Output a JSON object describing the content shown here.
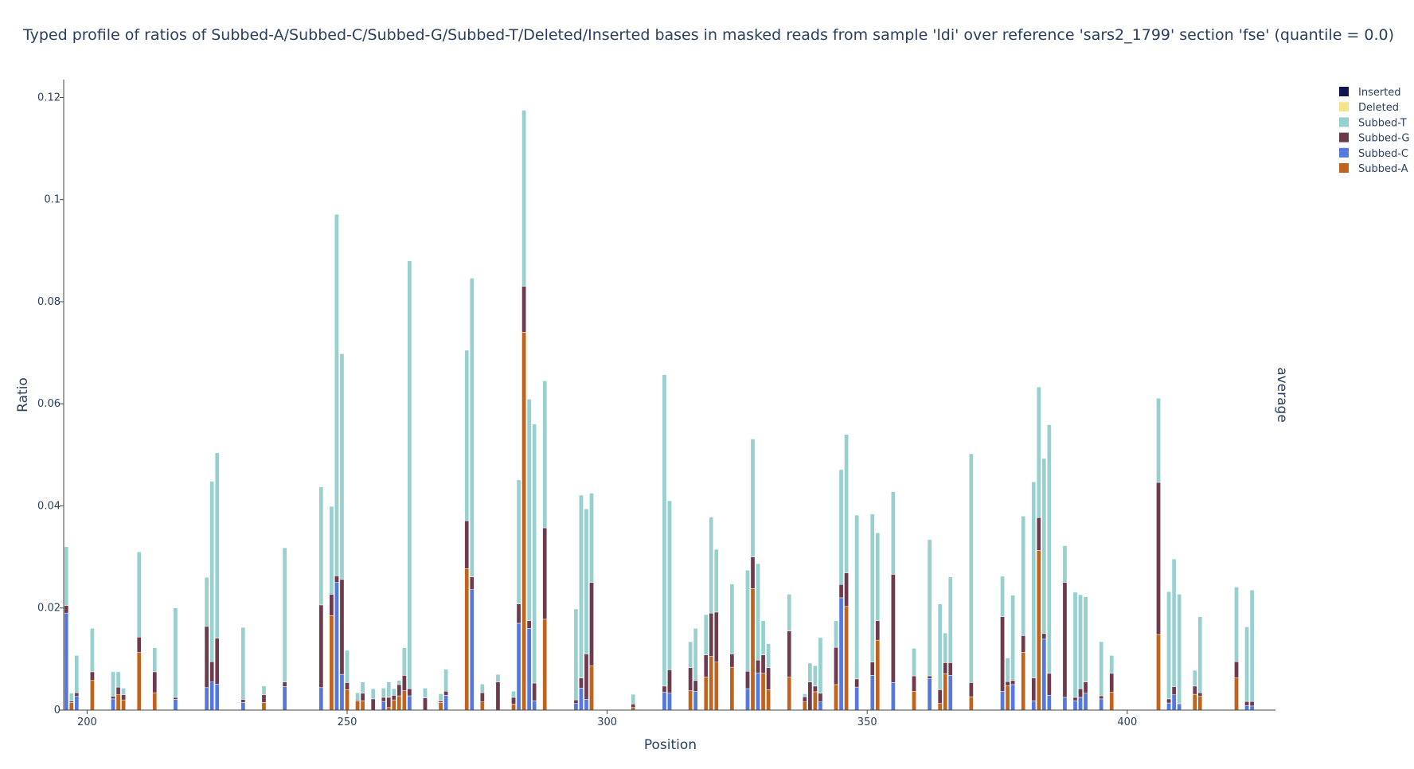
{
  "chart_data": {
    "type": "bar",
    "stacked": true,
    "title": "Typed profile of ratios of Subbed-A/Subbed-C/Subbed-G/Subbed-T/Deleted/Inserted bases in masked reads from sample 'ldi' over reference 'sars2_1799' section 'fse' (quantile = 0.0)",
    "xlabel": "Position",
    "ylabel": "Ratio",
    "facet_label": "average",
    "xlim": [
      195.5,
      428.5
    ],
    "ylim": [
      0,
      0.1235
    ],
    "x_ticks": [
      200,
      250,
      300,
      350,
      400
    ],
    "y_ticks": [
      0,
      0.02,
      0.04,
      0.06,
      0.08,
      0.1,
      0.12
    ],
    "y_tick_labels": [
      "0",
      "0.02",
      "0.04",
      "0.06",
      "0.08",
      "0.1",
      "0.12"
    ],
    "legend_position": "top-right",
    "legend_order": [
      "Inserted",
      "Deleted",
      "Subbed-T",
      "Subbed-G",
      "Subbed-C",
      "Subbed-A"
    ],
    "stack_order": [
      "Subbed-A",
      "Subbed-C",
      "Subbed-G",
      "Subbed-T",
      "Deleted",
      "Inserted"
    ],
    "colors": {
      "Subbed-A": "#c0631c",
      "Subbed-C": "#5578de",
      "Subbed-G": "#6e3a4e",
      "Subbed-T": "#98d0d0",
      "Deleted": "#f5e48e",
      "Inserted": "#13134f"
    },
    "bars": [
      {
        "x": 196,
        "A": 0,
        "C": 0.019,
        "G": 0.0015,
        "T": 0.0115
      },
      {
        "x": 197,
        "A": 0.0015,
        "C": 0,
        "G": 0.0003,
        "T": 0.0015
      },
      {
        "x": 198,
        "A": 0,
        "C": 0.0027,
        "G": 0.0007,
        "T": 0.0073
      },
      {
        "x": 201,
        "A": 0.0058,
        "C": 0,
        "G": 0.0017,
        "T": 0.0085
      },
      {
        "x": 205,
        "A": 0,
        "C": 0.0022,
        "G": 0.0005,
        "T": 0.0048
      },
      {
        "x": 206,
        "A": 0.003,
        "C": 0,
        "G": 0.0015,
        "T": 0.003
      },
      {
        "x": 207,
        "A": 0.002,
        "C": 0,
        "G": 0.001,
        "T": 0.0013
      },
      {
        "x": 210,
        "A": 0.0113,
        "C": 0,
        "G": 0.003,
        "T": 0.0167
      },
      {
        "x": 213,
        "A": 0.0034,
        "C": 0,
        "G": 0.0041,
        "T": 0.0047
      },
      {
        "x": 217,
        "A": 0,
        "C": 0.0021,
        "G": 0.0004,
        "T": 0.0175
      },
      {
        "x": 223,
        "A": 0,
        "C": 0.0044,
        "G": 0.012,
        "T": 0.0096
      },
      {
        "x": 224,
        "A": 0,
        "C": 0.0055,
        "G": 0.004,
        "T": 0.0353
      },
      {
        "x": 225,
        "A": 0,
        "C": 0.0051,
        "G": 0.009,
        "T": 0.0363
      },
      {
        "x": 230,
        "A": 0,
        "C": 0.0015,
        "G": 0.0006,
        "T": 0.0141
      },
      {
        "x": 234,
        "A": 0.0015,
        "C": 0,
        "G": 0.0015,
        "T": 0.0017
      },
      {
        "x": 238,
        "A": 0,
        "C": 0.0046,
        "G": 0.0009,
        "T": 0.0263
      },
      {
        "x": 245,
        "A": 0,
        "C": 0.0044,
        "G": 0.0162,
        "T": 0.0231
      },
      {
        "x": 247,
        "A": 0.0185,
        "C": 0,
        "G": 0.0042,
        "T": 0.0172
      },
      {
        "x": 248,
        "A": 0,
        "C": 0.025,
        "G": 0.0013,
        "T": 0.0708
      },
      {
        "x": 249,
        "A": 0,
        "C": 0.007,
        "G": 0.0186,
        "T": 0.0442
      },
      {
        "x": 250,
        "A": 0.004,
        "C": 0,
        "G": 0.0014,
        "T": 0.0063
      },
      {
        "x": 252,
        "A": 0.0018,
        "C": 0,
        "G": 0.0002,
        "T": 0.0014
      },
      {
        "x": 253,
        "A": 0.0018,
        "C": 0,
        "G": 0.0015,
        "T": 0.0022
      },
      {
        "x": 255,
        "A": 0,
        "C": 0,
        "G": 0.0022,
        "T": 0.002
      },
      {
        "x": 257,
        "A": 0,
        "C": 0.0017,
        "G": 0.0008,
        "T": 0.0018
      },
      {
        "x": 258,
        "A": 0.0005,
        "C": 0,
        "G": 0.002,
        "T": 0.003
      },
      {
        "x": 259,
        "A": 0.002,
        "C": 0,
        "G": 0.0009,
        "T": 0.0013
      },
      {
        "x": 260,
        "A": 0.0028,
        "C": 0,
        "G": 0.0022,
        "T": 0.0008
      },
      {
        "x": 261,
        "A": 0.0038,
        "C": 0,
        "G": 0.003,
        "T": 0.0054
      },
      {
        "x": 262,
        "A": 0,
        "C": 0.0028,
        "G": 0.0014,
        "T": 0.0838
      },
      {
        "x": 265,
        "A": 0,
        "C": 0,
        "G": 0.0024,
        "T": 0.0019
      },
      {
        "x": 268,
        "A": 0.0015,
        "C": 0,
        "G": 0.0003,
        "T": 0.0014
      },
      {
        "x": 269,
        "A": 0,
        "C": 0.0029,
        "G": 0.0008,
        "T": 0.0043
      },
      {
        "x": 273,
        "A": 0.0277,
        "C": 0,
        "G": 0.0094,
        "T": 0.0334
      },
      {
        "x": 274,
        "A": 0,
        "C": 0.0236,
        "G": 0.0025,
        "T": 0.0585
      },
      {
        "x": 276,
        "A": 0.0016,
        "C": 0,
        "G": 0.0018,
        "T": 0.0017
      },
      {
        "x": 279,
        "A": 0,
        "C": 0,
        "G": 0.0055,
        "T": 0.0015
      },
      {
        "x": 282,
        "A": 0.0012,
        "C": 0,
        "G": 0.0013,
        "T": 0.0012
      },
      {
        "x": 283,
        "A": 0,
        "C": 0.017,
        "G": 0.0038,
        "T": 0.0243
      },
      {
        "x": 284,
        "A": 0.074,
        "C": 0,
        "G": 0.009,
        "T": 0.0345
      },
      {
        "x": 285,
        "A": 0,
        "C": 0.016,
        "G": 0.0015,
        "T": 0.0434
      },
      {
        "x": 286,
        "A": 0,
        "C": 0.0018,
        "G": 0.0035,
        "T": 0.0507
      },
      {
        "x": 288,
        "A": 0.0178,
        "C": 0,
        "G": 0.0179,
        "T": 0.0288
      },
      {
        "x": 294,
        "A": 0,
        "C": 0.0013,
        "G": 0.0007,
        "T": 0.0178
      },
      {
        "x": 295,
        "A": 0,
        "C": 0.0043,
        "G": 0.002,
        "T": 0.0358
      },
      {
        "x": 296,
        "A": 0,
        "C": 0.0021,
        "G": 0.0089,
        "T": 0.0284
      },
      {
        "x": 297,
        "A": 0.0087,
        "C": 0,
        "G": 0.0163,
        "T": 0.0175
      },
      {
        "x": 305,
        "A": 0.0005,
        "C": 0,
        "G": 0.0007,
        "T": 0.0019
      },
      {
        "x": 311,
        "A": 0,
        "C": 0.0035,
        "G": 0.0012,
        "T": 0.061
      },
      {
        "x": 312,
        "A": 0,
        "C": 0.0033,
        "G": 0.0046,
        "T": 0.0331
      },
      {
        "x": 316,
        "A": 0.0038,
        "C": 0,
        "G": 0.0045,
        "T": 0.0051
      },
      {
        "x": 317,
        "A": 0,
        "C": 0.0037,
        "G": 0.0021,
        "T": 0.0102
      },
      {
        "x": 319,
        "A": 0.0065,
        "C": 0,
        "G": 0.0043,
        "T": 0.0079
      },
      {
        "x": 320,
        "A": 0.0105,
        "C": 0,
        "G": 0.0085,
        "T": 0.0188
      },
      {
        "x": 321,
        "A": 0.0094,
        "C": 0,
        "G": 0.0098,
        "T": 0.0123
      },
      {
        "x": 324,
        "A": 0.0084,
        "C": 0,
        "G": 0.0026,
        "T": 0.0137
      },
      {
        "x": 327,
        "A": 0,
        "C": 0.0042,
        "G": 0.0034,
        "T": 0.0198
      },
      {
        "x": 328,
        "A": 0.0238,
        "C": 0,
        "G": 0.0062,
        "T": 0.0231
      },
      {
        "x": 329,
        "A": 0,
        "C": 0.0073,
        "G": 0.0025,
        "T": 0.0189
      },
      {
        "x": 330,
        "A": 0.0072,
        "C": 0,
        "G": 0.0036,
        "T": 0.0067
      },
      {
        "x": 331,
        "A": 0.004,
        "C": 0,
        "G": 0.0043,
        "T": 0.0047
      },
      {
        "x": 335,
        "A": 0.0065,
        "C": 0,
        "G": 0.009,
        "T": 0.0072
      },
      {
        "x": 338,
        "A": 0.0016,
        "C": 0,
        "G": 0.001,
        "T": 0.0006
      },
      {
        "x": 339,
        "A": 0,
        "C": 0,
        "G": 0.0055,
        "T": 0.0037
      },
      {
        "x": 340,
        "A": 0.0036,
        "C": 0,
        "G": 0.0011,
        "T": 0.004
      },
      {
        "x": 341,
        "A": 0,
        "C": 0.0016,
        "G": 0.0017,
        "T": 0.0109
      },
      {
        "x": 344,
        "A": 0.005,
        "C": 0,
        "G": 0.0073,
        "T": 0.0052
      },
      {
        "x": 345,
        "A": 0,
        "C": 0.022,
        "G": 0.0026,
        "T": 0.0225
      },
      {
        "x": 346,
        "A": 0.0203,
        "C": 0,
        "G": 0.0066,
        "T": 0.0271
      },
      {
        "x": 348,
        "A": 0,
        "C": 0.0045,
        "G": 0.0016,
        "T": 0.0321
      },
      {
        "x": 351,
        "A": 0,
        "C": 0.0068,
        "G": 0.0026,
        "T": 0.029
      },
      {
        "x": 352,
        "A": 0.0137,
        "C": 0,
        "G": 0.0038,
        "T": 0.0172
      },
      {
        "x": 355,
        "A": 0,
        "C": 0.0054,
        "G": 0.0212,
        "T": 0.0162
      },
      {
        "x": 359,
        "A": 0.0037,
        "C": 0,
        "G": 0.003,
        "T": 0.0054
      },
      {
        "x": 362,
        "A": 0,
        "C": 0.0062,
        "G": 0.0005,
        "T": 0.0267
      },
      {
        "x": 364,
        "A": 0.0013,
        "C": 0,
        "G": 0.0027,
        "T": 0.0168
      },
      {
        "x": 365,
        "A": 0.0071,
        "C": 0,
        "G": 0.0022,
        "T": 0.0058
      },
      {
        "x": 366,
        "A": 0,
        "C": 0.0068,
        "G": 0.0025,
        "T": 0.0168
      },
      {
        "x": 370,
        "A": 0.0026,
        "C": 0,
        "G": 0.0028,
        "T": 0.0448
      },
      {
        "x": 376,
        "A": 0,
        "C": 0.0037,
        "G": 0.0146,
        "T": 0.0079
      },
      {
        "x": 377,
        "A": 0.0048,
        "C": 0,
        "G": 0.0008,
        "T": 0.0046
      },
      {
        "x": 378,
        "A": 0,
        "C": 0.005,
        "G": 0.0008,
        "T": 0.0167
      },
      {
        "x": 380,
        "A": 0.0113,
        "C": 0,
        "G": 0.0033,
        "T": 0.0234
      },
      {
        "x": 382,
        "A": 0,
        "C": 0.0018,
        "G": 0.0045,
        "T": 0.0384
      },
      {
        "x": 383,
        "A": 0.0313,
        "C": 0,
        "G": 0.0064,
        "T": 0.0256
      },
      {
        "x": 384,
        "A": 0,
        "C": 0.0139,
        "G": 0.0011,
        "T": 0.0343
      },
      {
        "x": 385,
        "A": 0,
        "C": 0.0029,
        "G": 0.0043,
        "T": 0.0487
      },
      {
        "x": 388,
        "A": 0,
        "C": 0.0025,
        "G": 0.0225,
        "T": 0.0072
      },
      {
        "x": 390,
        "A": 0,
        "C": 0.0018,
        "G": 0.0007,
        "T": 0.0206
      },
      {
        "x": 391,
        "A": 0,
        "C": 0.0025,
        "G": 0.0017,
        "T": 0.0184
      },
      {
        "x": 392,
        "A": 0,
        "C": 0.0033,
        "G": 0.0022,
        "T": 0.0167
      },
      {
        "x": 395,
        "A": 0,
        "C": 0.0022,
        "G": 0.0006,
        "T": 0.0106
      },
      {
        "x": 397,
        "A": 0.0035,
        "C": 0,
        "G": 0.0037,
        "T": 0.0035
      },
      {
        "x": 406,
        "A": 0.0148,
        "C": 0,
        "G": 0.0298,
        "T": 0.0165
      },
      {
        "x": 408,
        "A": 0,
        "C": 0.0014,
        "G": 0.0008,
        "T": 0.021
      },
      {
        "x": 409,
        "A": 0,
        "C": 0.003,
        "G": 0.0016,
        "T": 0.025
      },
      {
        "x": 410,
        "A": 0,
        "C": 0.0011,
        "G": 0.0002,
        "T": 0.0214
      },
      {
        "x": 413,
        "A": 0.0031,
        "C": 0,
        "G": 0.0016,
        "T": 0.0031
      },
      {
        "x": 414,
        "A": 0.0027,
        "C": 0,
        "G": 0.0007,
        "T": 0.0149
      },
      {
        "x": 421,
        "A": 0.0063,
        "C": 0,
        "G": 0.0032,
        "T": 0.0146
      },
      {
        "x": 423,
        "A": 0,
        "C": 0.0009,
        "G": 0.0008,
        "T": 0.0146
      },
      {
        "x": 424,
        "A": 0,
        "C": 0.0008,
        "G": 0.0009,
        "T": 0.0218
      }
    ]
  }
}
